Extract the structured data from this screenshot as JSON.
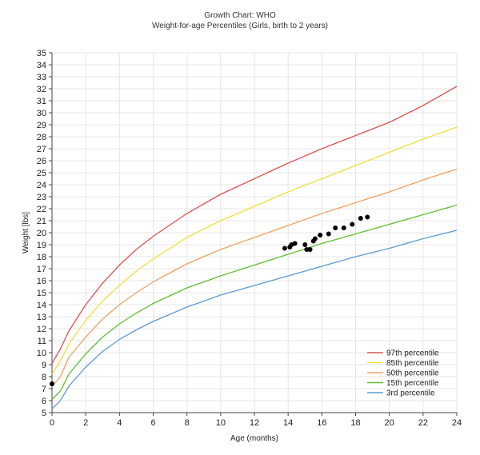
{
  "chart_data": {
    "type": "line",
    "title": "Growth Chart: WHO",
    "subtitle": "Weight-for-age Percentiles (Girls, birth to 2 years)",
    "xlabel": "Age (months)",
    "ylabel": "Weight [lbs]",
    "xlim": [
      0,
      24
    ],
    "ylim": [
      5,
      35
    ],
    "x_ticks": [
      0,
      2,
      4,
      6,
      8,
      10,
      12,
      14,
      16,
      18,
      20,
      22,
      24
    ],
    "y_ticks": [
      5,
      6,
      7,
      8,
      9,
      10,
      11,
      12,
      13,
      14,
      15,
      16,
      17,
      18,
      19,
      20,
      21,
      22,
      23,
      24,
      25,
      26,
      27,
      28,
      29,
      30,
      31,
      32,
      33,
      34,
      35
    ],
    "grid": true,
    "legend_position": "bottom-right",
    "series": [
      {
        "name": "97th percentile",
        "color": "#d9534f",
        "x": [
          0,
          0.5,
          1,
          2,
          3,
          4,
          5,
          6,
          8,
          10,
          12,
          14,
          16,
          18,
          20,
          22,
          24
        ],
        "y": [
          9.1,
          10.3,
          11.8,
          14.0,
          15.8,
          17.3,
          18.6,
          19.7,
          21.6,
          23.2,
          24.5,
          25.8,
          27.0,
          28.1,
          29.2,
          30.6,
          32.2
        ]
      },
      {
        "name": "85th percentile",
        "color": "#f2df3a",
        "x": [
          0,
          0.5,
          1,
          2,
          3,
          4,
          5,
          6,
          8,
          10,
          12,
          14,
          16,
          18,
          20,
          22,
          24
        ],
        "y": [
          8.2,
          9.3,
          10.7,
          12.7,
          14.3,
          15.6,
          16.8,
          17.8,
          19.6,
          21.0,
          22.2,
          23.4,
          24.5,
          25.6,
          26.7,
          27.8,
          28.8
        ]
      },
      {
        "name": "50th percentile",
        "color": "#f0a060",
        "x": [
          0,
          0.5,
          1,
          2,
          3,
          4,
          5,
          6,
          8,
          10,
          12,
          14,
          16,
          18,
          20,
          22,
          24
        ],
        "y": [
          7.2,
          8.0,
          9.6,
          11.3,
          12.8,
          14.0,
          15.0,
          15.9,
          17.4,
          18.6,
          19.6,
          20.6,
          21.6,
          22.5,
          23.4,
          24.4,
          25.3
        ]
      },
      {
        "name": "15th percentile",
        "color": "#5fbf2f",
        "x": [
          0,
          0.5,
          1,
          2,
          3,
          4,
          5,
          6,
          8,
          10,
          12,
          14,
          16,
          18,
          20,
          22,
          24
        ],
        "y": [
          6.1,
          6.8,
          8.2,
          9.9,
          11.3,
          12.4,
          13.3,
          14.1,
          15.4,
          16.4,
          17.3,
          18.2,
          19.1,
          19.9,
          20.7,
          21.5,
          22.3
        ]
      },
      {
        "name": "3rd percentile",
        "color": "#5b9bd5",
        "x": [
          0,
          0.5,
          1,
          2,
          3,
          4,
          5,
          6,
          8,
          10,
          12,
          14,
          16,
          18,
          20,
          22,
          24
        ],
        "y": [
          5.3,
          6.0,
          7.2,
          8.8,
          10.1,
          11.1,
          11.9,
          12.6,
          13.8,
          14.8,
          15.6,
          16.4,
          17.2,
          18.0,
          18.7,
          19.5,
          20.2
        ]
      }
    ],
    "measurements": {
      "color": "#000000",
      "points": [
        {
          "x": 0.0,
          "y": 7.4
        },
        {
          "x": 13.8,
          "y": 18.7
        },
        {
          "x": 14.1,
          "y": 18.8
        },
        {
          "x": 14.2,
          "y": 19.0
        },
        {
          "x": 14.4,
          "y": 19.1
        },
        {
          "x": 15.0,
          "y": 19.0
        },
        {
          "x": 15.1,
          "y": 18.6
        },
        {
          "x": 15.3,
          "y": 18.6
        },
        {
          "x": 15.5,
          "y": 19.3
        },
        {
          "x": 15.6,
          "y": 19.5
        },
        {
          "x": 15.9,
          "y": 19.8
        },
        {
          "x": 16.4,
          "y": 19.9
        },
        {
          "x": 16.8,
          "y": 20.4
        },
        {
          "x": 17.3,
          "y": 20.4
        },
        {
          "x": 17.8,
          "y": 20.7
        },
        {
          "x": 18.3,
          "y": 21.2
        },
        {
          "x": 18.7,
          "y": 21.3
        }
      ]
    }
  }
}
